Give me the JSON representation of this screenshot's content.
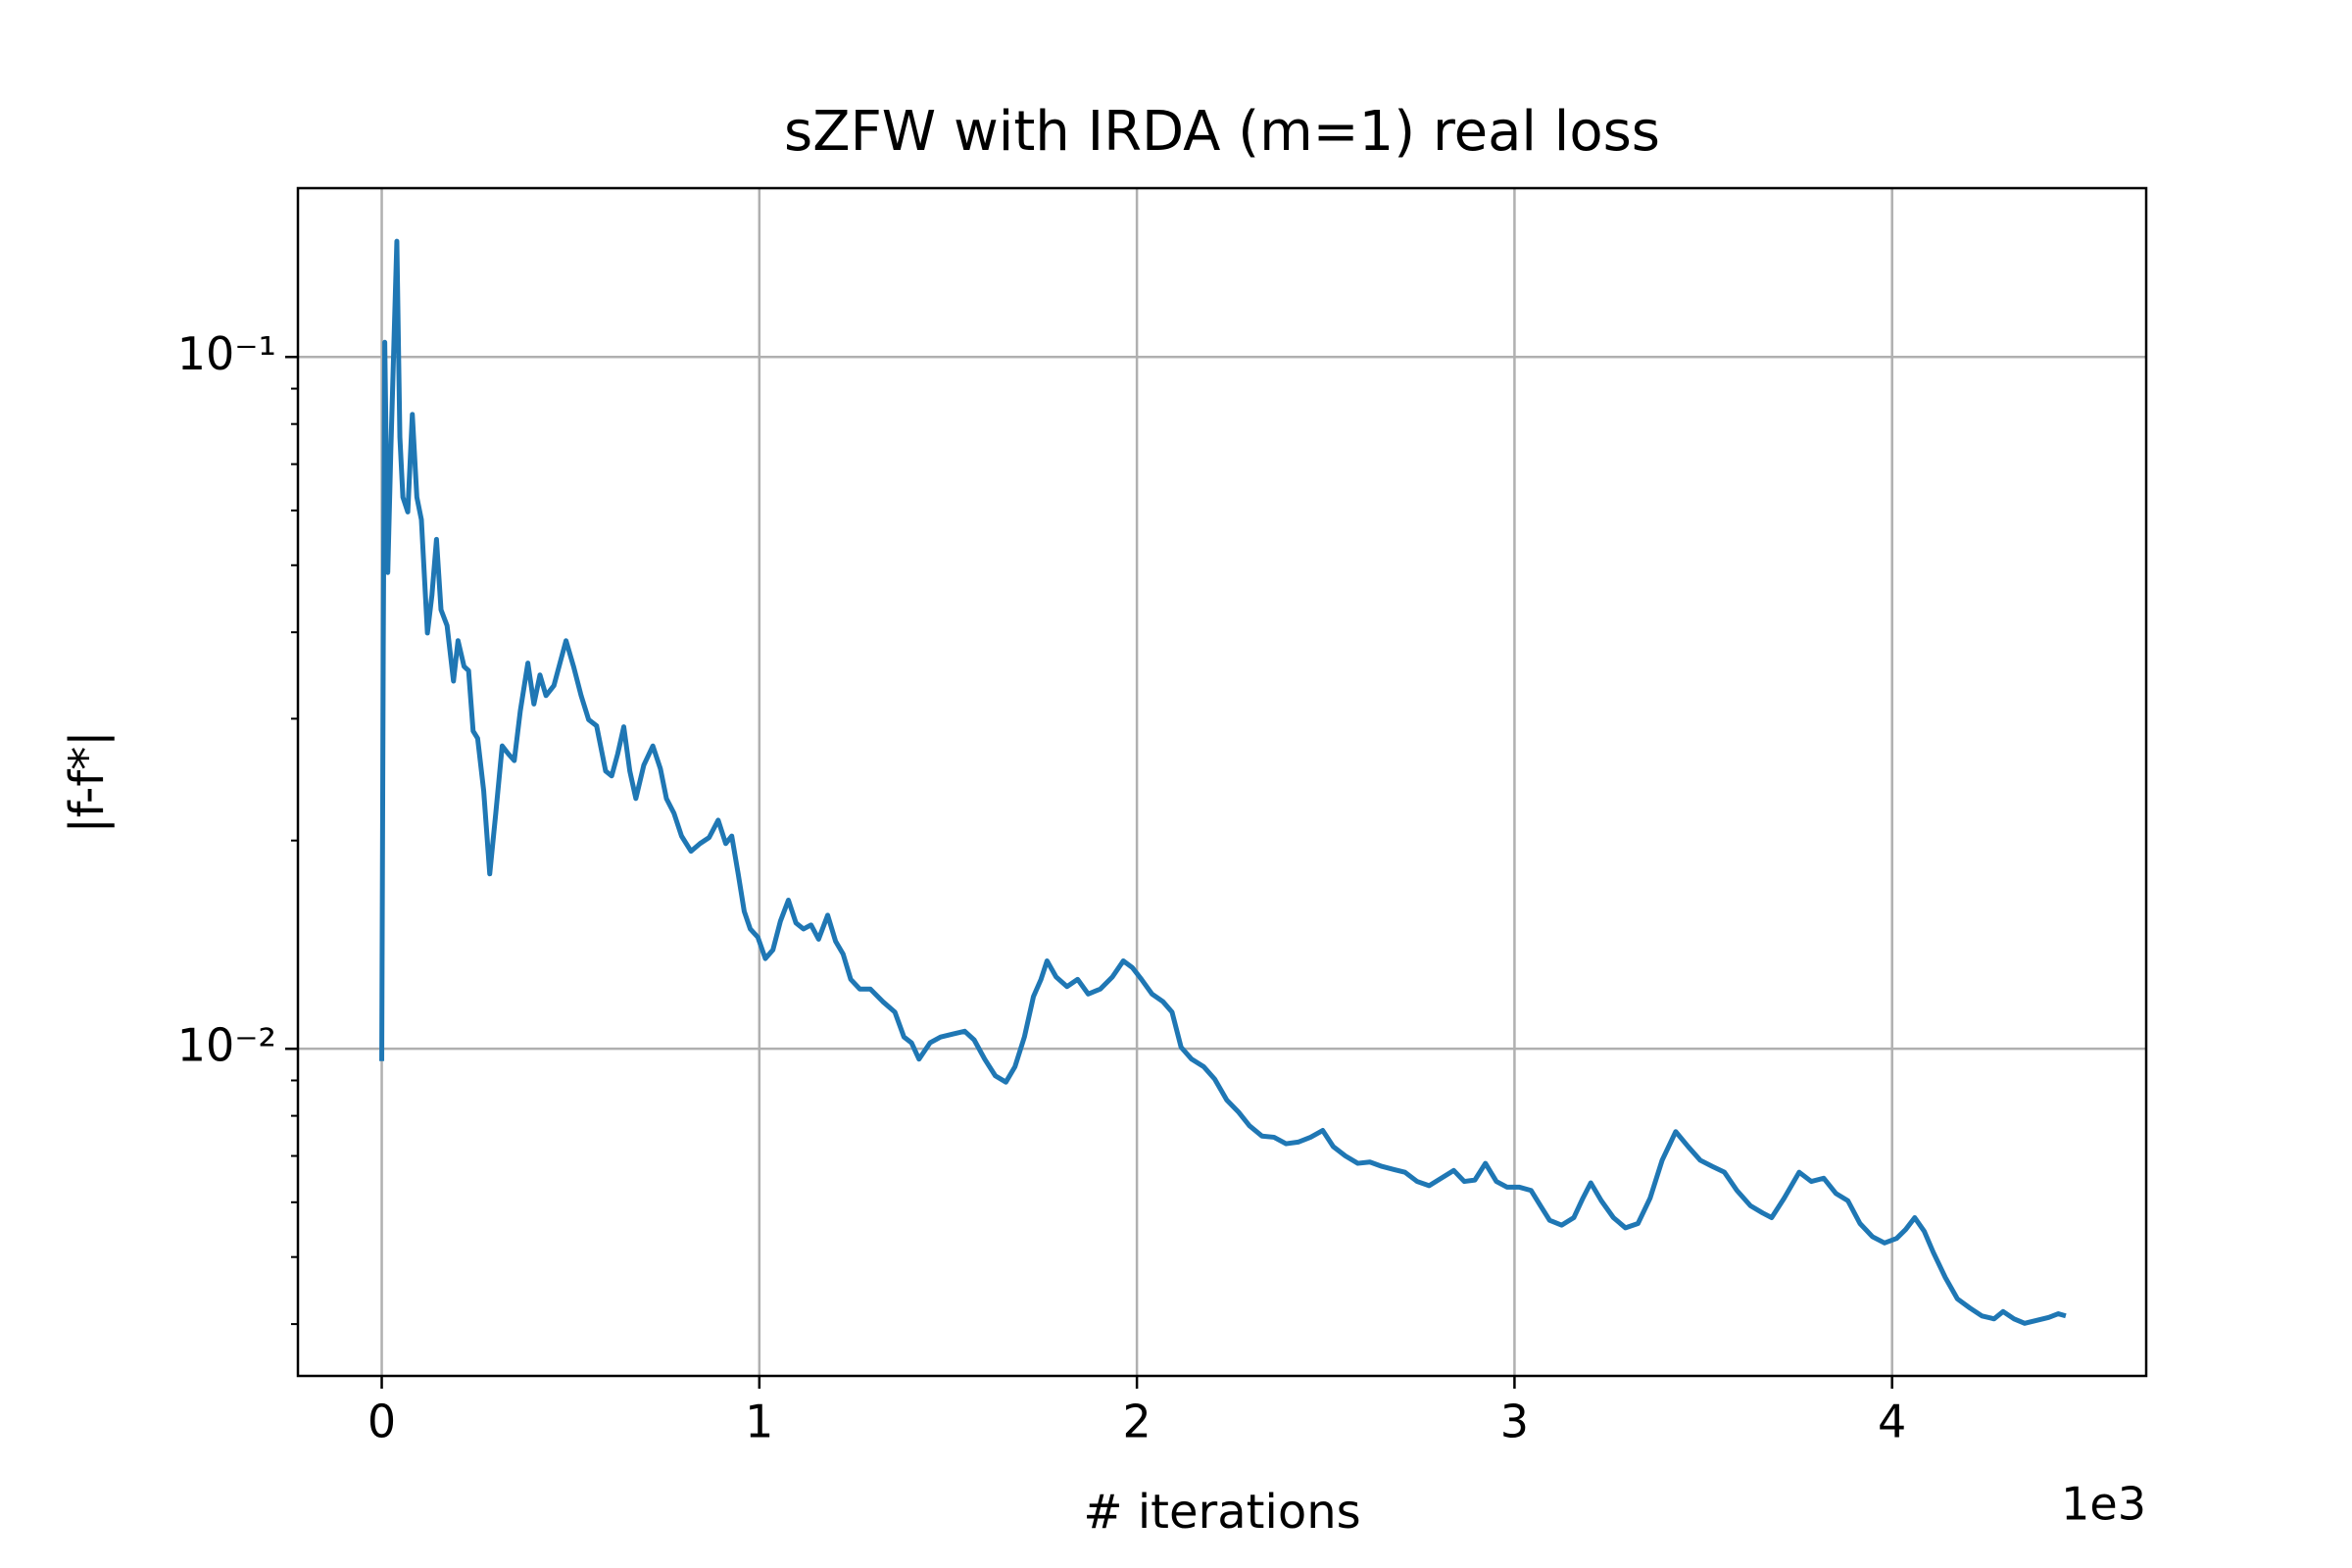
{
  "chart_data": {
    "type": "line",
    "title": "sZFW with IRDA (m=1) real loss",
    "xlabel": "# iterations",
    "ylabel": "|f-f*|",
    "x_offset_label": "1e3",
    "yscale": "log",
    "grid": true,
    "xlim": [
      -0.222,
      4.673
    ],
    "xticks": [
      0,
      1,
      2,
      3,
      4
    ],
    "ylim": [
      0.003366,
      0.1754
    ],
    "yticks": [
      {
        "value": 0.01,
        "label": "10⁻²"
      },
      {
        "value": 0.1,
        "label": "10⁻¹"
      }
    ],
    "yminorticks": [
      0.004,
      0.005,
      0.006,
      0.007,
      0.008,
      0.009,
      0.02,
      0.03,
      0.04,
      0.05,
      0.06,
      0.07,
      0.08,
      0.09
    ],
    "x": [
      0,
      0.004,
      0.008,
      0.016,
      0.024,
      0.032,
      0.04,
      0.048,
      0.056,
      0.069,
      0.081,
      0.093,
      0.105,
      0.121,
      0.133,
      0.145,
      0.157,
      0.173,
      0.19,
      0.202,
      0.218,
      0.23,
      0.242,
      0.254,
      0.27,
      0.286,
      0.302,
      0.319,
      0.335,
      0.351,
      0.367,
      0.387,
      0.403,
      0.419,
      0.435,
      0.456,
      0.472,
      0.488,
      0.508,
      0.528,
      0.548,
      0.569,
      0.593,
      0.609,
      0.625,
      0.641,
      0.657,
      0.673,
      0.694,
      0.718,
      0.738,
      0.754,
      0.774,
      0.794,
      0.819,
      0.843,
      0.867,
      0.891,
      0.911,
      0.927,
      0.944,
      0.96,
      0.976,
      0.996,
      1.016,
      1.036,
      1.056,
      1.077,
      1.097,
      1.117,
      1.137,
      1.157,
      1.181,
      1.202,
      1.222,
      1.242,
      1.266,
      1.294,
      1.327,
      1.359,
      1.383,
      1.403,
      1.423,
      1.452,
      1.48,
      1.512,
      1.544,
      1.569,
      1.597,
      1.625,
      1.653,
      1.677,
      1.702,
      1.726,
      1.746,
      1.762,
      1.786,
      1.815,
      1.843,
      1.871,
      1.903,
      1.935,
      1.964,
      1.988,
      2.012,
      2.04,
      2.069,
      2.093,
      2.117,
      2.145,
      2.177,
      2.206,
      2.238,
      2.27,
      2.298,
      2.331,
      2.363,
      2.395,
      2.427,
      2.46,
      2.492,
      2.52,
      2.552,
      2.585,
      2.617,
      2.649,
      2.681,
      2.71,
      2.742,
      2.774,
      2.806,
      2.839,
      2.867,
      2.895,
      2.923,
      2.952,
      2.98,
      3.012,
      3.044,
      3.069,
      3.093,
      3.125,
      3.157,
      3.181,
      3.202,
      3.23,
      3.262,
      3.294,
      3.327,
      3.359,
      3.391,
      3.427,
      3.46,
      3.492,
      3.524,
      3.556,
      3.589,
      3.625,
      3.657,
      3.681,
      3.714,
      3.754,
      3.786,
      3.819,
      3.851,
      3.883,
      3.915,
      3.948,
      3.98,
      4.012,
      4.036,
      4.06,
      4.085,
      4.109,
      4.141,
      4.173,
      4.206,
      4.238,
      4.27,
      4.294,
      4.323,
      4.351,
      4.383,
      4.415,
      4.44,
      4.46
    ],
    "series": [
      {
        "color": "#1f77b4",
        "values": [
          0.0096,
          0.038,
          0.105,
          0.0488,
          0.0729,
          0.1035,
          0.147,
          0.0766,
          0.0627,
          0.0597,
          0.0826,
          0.0627,
          0.0582,
          0.0399,
          0.0453,
          0.0545,
          0.0431,
          0.0409,
          0.034,
          0.0389,
          0.0357,
          0.0352,
          0.0288,
          0.0281,
          0.0236,
          0.0179,
          0.0219,
          0.0274,
          0.0267,
          0.0261,
          0.0308,
          0.0361,
          0.0315,
          0.0347,
          0.0324,
          0.0335,
          0.0361,
          0.0389,
          0.0357,
          0.0324,
          0.0299,
          0.0293,
          0.0252,
          0.0248,
          0.0267,
          0.0292,
          0.0252,
          0.023,
          0.0257,
          0.0274,
          0.0254,
          0.023,
          0.0219,
          0.0203,
          0.0193,
          0.0198,
          0.0202,
          0.0214,
          0.0198,
          0.0203,
          0.0179,
          0.0158,
          0.0149,
          0.0145,
          0.0135,
          0.0139,
          0.0153,
          0.0164,
          0.0152,
          0.0149,
          0.0151,
          0.0144,
          0.0156,
          0.0143,
          0.0137,
          0.0126,
          0.0122,
          0.0122,
          0.0117,
          0.0113,
          0.0104,
          0.0102,
          0.00966,
          0.0102,
          0.0104,
          0.0105,
          0.0106,
          0.0103,
          0.00966,
          0.00914,
          0.00895,
          0.00942,
          0.0104,
          0.0119,
          0.0126,
          0.0134,
          0.0127,
          0.0123,
          0.0126,
          0.012,
          0.0122,
          0.0127,
          0.0134,
          0.0131,
          0.0126,
          0.012,
          0.0117,
          0.0113,
          0.01005,
          0.00966,
          0.00942,
          0.00904,
          0.00843,
          0.00809,
          0.00774,
          0.00748,
          0.00745,
          0.00729,
          0.00733,
          0.00745,
          0.00762,
          0.00722,
          0.007,
          0.00683,
          0.00686,
          0.00676,
          0.00669,
          0.00663,
          0.00643,
          0.00634,
          0.0065,
          0.00667,
          0.00643,
          0.00646,
          0.00683,
          0.00643,
          0.00631,
          0.00631,
          0.00624,
          0.00593,
          0.00565,
          0.00556,
          0.0057,
          0.00608,
          0.0064,
          0.00603,
          0.0057,
          0.00551,
          0.00559,
          0.00608,
          0.0069,
          0.00759,
          0.00722,
          0.0069,
          0.00676,
          0.00663,
          0.00624,
          0.00593,
          0.00579,
          0.0057,
          0.00608,
          0.00663,
          0.00643,
          0.0065,
          0.00618,
          0.00603,
          0.00559,
          0.00535,
          0.00524,
          0.00532,
          0.00548,
          0.0057,
          0.00545,
          0.00508,
          0.00467,
          0.00435,
          0.00422,
          0.00411,
          0.00407,
          0.00417,
          0.00407,
          0.00401,
          0.00405,
          0.00409,
          0.00414,
          0.00411
        ]
      }
    ]
  }
}
